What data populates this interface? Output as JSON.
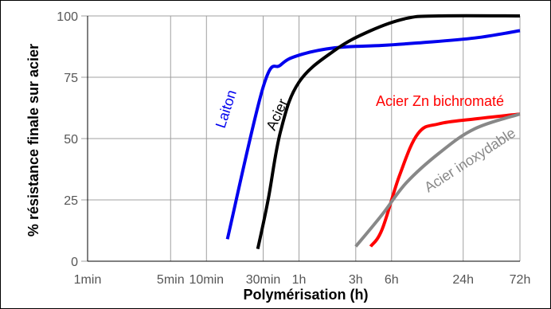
{
  "chart_data": {
    "type": "line",
    "title": "",
    "xlabel": "Polymérisation (h)",
    "ylabel": "% résistance finale sur acier",
    "x_scale": "log",
    "x_unit": "h",
    "xlim": [
      0.0167,
      72
    ],
    "ylim": [
      0,
      100
    ],
    "grid": true,
    "legend": "none (labels drawn along curves)",
    "x_ticks": [
      {
        "label": "1min",
        "value": 0.0167
      },
      {
        "label": "5min",
        "value": 0.0833
      },
      {
        "label": "10min",
        "value": 0.1667
      },
      {
        "label": "30min",
        "value": 0.5
      },
      {
        "label": "1h",
        "value": 1
      },
      {
        "label": "3h",
        "value": 3
      },
      {
        "label": "6h",
        "value": 6
      },
      {
        "label": "24h",
        "value": 24
      },
      {
        "label": "72h",
        "value": 72
      }
    ],
    "y_ticks": [
      {
        "label": "0",
        "value": 0
      },
      {
        "label": "25",
        "value": 25
      },
      {
        "label": "50",
        "value": 50
      },
      {
        "label": "75",
        "value": 75
      },
      {
        "label": "100",
        "value": 100
      }
    ],
    "series": [
      {
        "name": "Laiton",
        "color": "#0000ee",
        "points": [
          [
            0.25,
            9
          ],
          [
            0.5,
            71
          ],
          [
            0.7,
            80
          ],
          [
            1,
            84
          ],
          [
            2,
            87
          ],
          [
            5,
            88
          ],
          [
            10,
            89
          ],
          [
            30,
            91
          ],
          [
            72,
            94
          ]
        ]
      },
      {
        "name": "Acier",
        "color": "#000000",
        "points": [
          [
            0.45,
            5
          ],
          [
            0.55,
            25
          ],
          [
            0.7,
            53
          ],
          [
            1,
            73
          ],
          [
            2,
            86
          ],
          [
            4,
            94
          ],
          [
            8,
            99
          ],
          [
            15,
            100
          ],
          [
            72,
            100
          ]
        ]
      },
      {
        "name": "Acier Zn bichromaté",
        "color": "#ff0000",
        "points": [
          [
            4,
            6
          ],
          [
            5,
            13
          ],
          [
            7,
            35
          ],
          [
            10,
            52
          ],
          [
            15,
            56
          ],
          [
            30,
            58
          ],
          [
            72,
            60
          ]
        ]
      },
      {
        "name": "Acier inoxydable",
        "color": "#888888",
        "points": [
          [
            3,
            6
          ],
          [
            5,
            19
          ],
          [
            8,
            32
          ],
          [
            15,
            44
          ],
          [
            30,
            54
          ],
          [
            72,
            60
          ]
        ]
      }
    ]
  }
}
